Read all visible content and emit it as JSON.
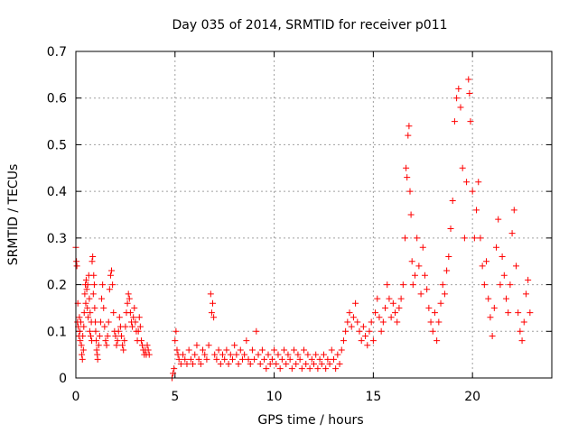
{
  "chart_data": {
    "type": "scatter",
    "title": "Day 035 of 2014, SRMTID for receiver p011",
    "xlabel": "GPS time / hours",
    "ylabel": "SRMTID / TECUs",
    "xlim": [
      0,
      24
    ],
    "ylim": [
      0,
      0.7
    ],
    "xticks": [
      0,
      5,
      10,
      15,
      20
    ],
    "yticks": [
      0,
      0.1,
      0.2,
      0.3,
      0.4,
      0.5,
      0.6,
      0.7
    ],
    "xtick_labels": [
      "0",
      "5",
      "10",
      "15",
      "20"
    ],
    "ytick_labels": [
      "0",
      "0.1",
      "0.2",
      "0.3",
      "0.4",
      "0.5",
      "0.6",
      "0.7"
    ],
    "grid": true,
    "marker": "+",
    "color": "#ff0000",
    "series": [
      {
        "name": "SRMTID",
        "points": [
          [
            0.0,
            0.28
          ],
          [
            0.03,
            0.25
          ],
          [
            0.05,
            0.24
          ],
          [
            0.08,
            0.12
          ],
          [
            0.1,
            0.16
          ],
          [
            0.12,
            0.11
          ],
          [
            0.15,
            0.09
          ],
          [
            0.18,
            0.13
          ],
          [
            0.2,
            0.1
          ],
          [
            0.22,
            0.08
          ],
          [
            0.25,
            0.12
          ],
          [
            0.28,
            0.07
          ],
          [
            0.3,
            0.05
          ],
          [
            0.33,
            0.04
          ],
          [
            0.35,
            0.09
          ],
          [
            0.38,
            0.06
          ],
          [
            0.4,
            0.11
          ],
          [
            0.42,
            0.14
          ],
          [
            0.45,
            0.18
          ],
          [
            0.48,
            0.2
          ],
          [
            0.5,
            0.16
          ],
          [
            0.52,
            0.21
          ],
          [
            0.55,
            0.19
          ],
          [
            0.58,
            0.15
          ],
          [
            0.6,
            0.2
          ],
          [
            0.62,
            0.13
          ],
          [
            0.65,
            0.22
          ],
          [
            0.68,
            0.17
          ],
          [
            0.7,
            0.1
          ],
          [
            0.72,
            0.14
          ],
          [
            0.75,
            0.09
          ],
          [
            0.78,
            0.12
          ],
          [
            0.8,
            0.08
          ],
          [
            0.82,
            0.25
          ],
          [
            0.85,
            0.26
          ],
          [
            0.88,
            0.18
          ],
          [
            0.9,
            0.22
          ],
          [
            0.93,
            0.2
          ],
          [
            0.95,
            0.15
          ],
          [
            0.98,
            0.12
          ],
          [
            1.0,
            0.1
          ],
          [
            1.03,
            0.08
          ],
          [
            1.05,
            0.06
          ],
          [
            1.08,
            0.05
          ],
          [
            1.1,
            0.04
          ],
          [
            1.15,
            0.07
          ],
          [
            1.2,
            0.09
          ],
          [
            1.25,
            0.12
          ],
          [
            1.3,
            0.17
          ],
          [
            1.35,
            0.2
          ],
          [
            1.4,
            0.15
          ],
          [
            1.45,
            0.11
          ],
          [
            1.5,
            0.08
          ],
          [
            1.55,
            0.07
          ],
          [
            1.6,
            0.09
          ],
          [
            1.65,
            0.12
          ],
          [
            1.7,
            0.19
          ],
          [
            1.75,
            0.22
          ],
          [
            1.8,
            0.23
          ],
          [
            1.85,
            0.2
          ],
          [
            1.9,
            0.14
          ],
          [
            1.95,
            0.1
          ],
          [
            2.0,
            0.09
          ],
          [
            2.05,
            0.07
          ],
          [
            2.1,
            0.08
          ],
          [
            2.15,
            0.1
          ],
          [
            2.2,
            0.13
          ],
          [
            2.25,
            0.11
          ],
          [
            2.3,
            0.09
          ],
          [
            2.35,
            0.07
          ],
          [
            2.4,
            0.06
          ],
          [
            2.45,
            0.08
          ],
          [
            2.5,
            0.11
          ],
          [
            2.55,
            0.14
          ],
          [
            2.6,
            0.16
          ],
          [
            2.65,
            0.18
          ],
          [
            2.7,
            0.17
          ],
          [
            2.75,
            0.14
          ],
          [
            2.8,
            0.12
          ],
          [
            2.85,
            0.11
          ],
          [
            2.9,
            0.13
          ],
          [
            2.95,
            0.15
          ],
          [
            3.0,
            0.12
          ],
          [
            3.05,
            0.1
          ],
          [
            3.1,
            0.08
          ],
          [
            3.15,
            0.1
          ],
          [
            3.2,
            0.13
          ],
          [
            3.25,
            0.11
          ],
          [
            3.3,
            0.08
          ],
          [
            3.35,
            0.07
          ],
          [
            3.4,
            0.06
          ],
          [
            3.45,
            0.05
          ],
          [
            3.5,
            0.06
          ],
          [
            3.55,
            0.05
          ],
          [
            3.6,
            0.07
          ],
          [
            3.65,
            0.06
          ],
          [
            3.7,
            0.05
          ],
          [
            4.85,
            0.0
          ],
          [
            4.9,
            0.01
          ],
          [
            4.95,
            0.02
          ],
          [
            5.0,
            0.08
          ],
          [
            5.05,
            0.1
          ],
          [
            5.1,
            0.06
          ],
          [
            5.15,
            0.05
          ],
          [
            5.2,
            0.04
          ],
          [
            5.3,
            0.03
          ],
          [
            5.4,
            0.05
          ],
          [
            5.5,
            0.04
          ],
          [
            5.6,
            0.03
          ],
          [
            5.7,
            0.06
          ],
          [
            5.8,
            0.04
          ],
          [
            5.9,
            0.03
          ],
          [
            6.0,
            0.05
          ],
          [
            6.1,
            0.07
          ],
          [
            6.2,
            0.04
          ],
          [
            6.3,
            0.03
          ],
          [
            6.4,
            0.06
          ],
          [
            6.5,
            0.05
          ],
          [
            6.6,
            0.04
          ],
          [
            6.7,
            0.07
          ],
          [
            6.8,
            0.18
          ],
          [
            6.85,
            0.14
          ],
          [
            6.9,
            0.16
          ],
          [
            6.95,
            0.13
          ],
          [
            7.0,
            0.05
          ],
          [
            7.1,
            0.04
          ],
          [
            7.2,
            0.06
          ],
          [
            7.3,
            0.03
          ],
          [
            7.4,
            0.05
          ],
          [
            7.5,
            0.04
          ],
          [
            7.6,
            0.06
          ],
          [
            7.7,
            0.03
          ],
          [
            7.8,
            0.05
          ],
          [
            7.9,
            0.04
          ],
          [
            8.0,
            0.07
          ],
          [
            8.1,
            0.05
          ],
          [
            8.2,
            0.03
          ],
          [
            8.3,
            0.06
          ],
          [
            8.4,
            0.04
          ],
          [
            8.5,
            0.05
          ],
          [
            8.6,
            0.08
          ],
          [
            8.7,
            0.04
          ],
          [
            8.8,
            0.03
          ],
          [
            8.9,
            0.06
          ],
          [
            9.0,
            0.04
          ],
          [
            9.1,
            0.1
          ],
          [
            9.2,
            0.05
          ],
          [
            9.3,
            0.03
          ],
          [
            9.4,
            0.06
          ],
          [
            9.5,
            0.04
          ],
          [
            9.6,
            0.02
          ],
          [
            9.7,
            0.05
          ],
          [
            9.8,
            0.03
          ],
          [
            9.9,
            0.04
          ],
          [
            10.0,
            0.06
          ],
          [
            10.1,
            0.03
          ],
          [
            10.2,
            0.05
          ],
          [
            10.3,
            0.02
          ],
          [
            10.4,
            0.04
          ],
          [
            10.5,
            0.06
          ],
          [
            10.6,
            0.03
          ],
          [
            10.7,
            0.05
          ],
          [
            10.8,
            0.04
          ],
          [
            10.9,
            0.02
          ],
          [
            11.0,
            0.06
          ],
          [
            11.1,
            0.03
          ],
          [
            11.2,
            0.05
          ],
          [
            11.3,
            0.04
          ],
          [
            11.4,
            0.02
          ],
          [
            11.5,
            0.06
          ],
          [
            11.6,
            0.03
          ],
          [
            11.7,
            0.05
          ],
          [
            11.8,
            0.02
          ],
          [
            11.9,
            0.04
          ],
          [
            12.0,
            0.03
          ],
          [
            12.1,
            0.05
          ],
          [
            12.2,
            0.02
          ],
          [
            12.3,
            0.04
          ],
          [
            12.4,
            0.03
          ],
          [
            12.5,
            0.05
          ],
          [
            12.6,
            0.02
          ],
          [
            12.7,
            0.04
          ],
          [
            12.8,
            0.03
          ],
          [
            12.9,
            0.06
          ],
          [
            13.0,
            0.04
          ],
          [
            13.1,
            0.02
          ],
          [
            13.2,
            0.05
          ],
          [
            13.3,
            0.03
          ],
          [
            13.4,
            0.06
          ],
          [
            13.5,
            0.08
          ],
          [
            13.6,
            0.1
          ],
          [
            13.7,
            0.12
          ],
          [
            13.8,
            0.14
          ],
          [
            13.9,
            0.11
          ],
          [
            14.0,
            0.13
          ],
          [
            14.1,
            0.16
          ],
          [
            14.2,
            0.12
          ],
          [
            14.3,
            0.1
          ],
          [
            14.4,
            0.08
          ],
          [
            14.5,
            0.11
          ],
          [
            14.6,
            0.09
          ],
          [
            14.7,
            0.07
          ],
          [
            14.8,
            0.1
          ],
          [
            14.9,
            0.12
          ],
          [
            15.0,
            0.08
          ],
          [
            15.1,
            0.14
          ],
          [
            15.2,
            0.17
          ],
          [
            15.3,
            0.13
          ],
          [
            15.4,
            0.1
          ],
          [
            15.5,
            0.12
          ],
          [
            15.6,
            0.15
          ],
          [
            15.7,
            0.2
          ],
          [
            15.8,
            0.17
          ],
          [
            15.9,
            0.13
          ],
          [
            16.0,
            0.16
          ],
          [
            16.1,
            0.14
          ],
          [
            16.2,
            0.12
          ],
          [
            16.3,
            0.15
          ],
          [
            16.4,
            0.17
          ],
          [
            16.5,
            0.2
          ],
          [
            16.6,
            0.3
          ],
          [
            16.65,
            0.45
          ],
          [
            16.7,
            0.43
          ],
          [
            16.75,
            0.52
          ],
          [
            16.8,
            0.54
          ],
          [
            16.85,
            0.4
          ],
          [
            16.9,
            0.35
          ],
          [
            16.95,
            0.25
          ],
          [
            17.0,
            0.2
          ],
          [
            17.1,
            0.22
          ],
          [
            17.2,
            0.3
          ],
          [
            17.3,
            0.24
          ],
          [
            17.4,
            0.18
          ],
          [
            17.5,
            0.28
          ],
          [
            17.6,
            0.22
          ],
          [
            17.7,
            0.19
          ],
          [
            17.8,
            0.15
          ],
          [
            17.9,
            0.12
          ],
          [
            18.0,
            0.1
          ],
          [
            18.1,
            0.14
          ],
          [
            18.2,
            0.08
          ],
          [
            18.3,
            0.12
          ],
          [
            18.4,
            0.16
          ],
          [
            18.5,
            0.2
          ],
          [
            18.6,
            0.18
          ],
          [
            18.7,
            0.23
          ],
          [
            18.8,
            0.26
          ],
          [
            18.9,
            0.32
          ],
          [
            19.0,
            0.38
          ],
          [
            19.1,
            0.55
          ],
          [
            19.2,
            0.6
          ],
          [
            19.3,
            0.62
          ],
          [
            19.4,
            0.58
          ],
          [
            19.5,
            0.45
          ],
          [
            19.6,
            0.3
          ],
          [
            19.7,
            0.42
          ],
          [
            19.8,
            0.64
          ],
          [
            19.85,
            0.61
          ],
          [
            19.9,
            0.55
          ],
          [
            20.0,
            0.4
          ],
          [
            20.1,
            0.3
          ],
          [
            20.2,
            0.36
          ],
          [
            20.3,
            0.42
          ],
          [
            20.4,
            0.3
          ],
          [
            20.5,
            0.24
          ],
          [
            20.6,
            0.2
          ],
          [
            20.7,
            0.25
          ],
          [
            20.8,
            0.17
          ],
          [
            20.9,
            0.13
          ],
          [
            21.0,
            0.09
          ],
          [
            21.1,
            0.15
          ],
          [
            21.2,
            0.28
          ],
          [
            21.3,
            0.34
          ],
          [
            21.4,
            0.2
          ],
          [
            21.5,
            0.26
          ],
          [
            21.6,
            0.22
          ],
          [
            21.7,
            0.17
          ],
          [
            21.8,
            0.14
          ],
          [
            21.9,
            0.2
          ],
          [
            22.0,
            0.31
          ],
          [
            22.1,
            0.36
          ],
          [
            22.2,
            0.24
          ],
          [
            22.3,
            0.14
          ],
          [
            22.4,
            0.1
          ],
          [
            22.5,
            0.08
          ],
          [
            22.6,
            0.12
          ],
          [
            22.7,
            0.18
          ],
          [
            22.8,
            0.21
          ],
          [
            22.9,
            0.14
          ]
        ]
      }
    ]
  }
}
